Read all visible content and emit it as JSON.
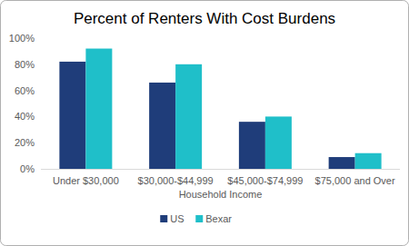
{
  "chart_data": {
    "type": "bar",
    "title": "Percent of Renters With Cost Burdens",
    "x_label": "Household Income",
    "categories": [
      "Under $30,000",
      "$30,000-$44,999",
      "$45,000-$74,999",
      "$75,000 and Over"
    ],
    "series": [
      {
        "name": "US",
        "color": "#1f3d7a",
        "values": [
          82,
          66,
          36,
          9
        ]
      },
      {
        "name": "Bexar",
        "color": "#1fbfc9",
        "values": [
          92,
          80,
          40,
          12
        ]
      }
    ],
    "ylim": [
      0,
      100
    ],
    "yticks": [
      {
        "value": 0,
        "label": "0%"
      },
      {
        "value": 20,
        "label": "20%"
      },
      {
        "value": 40,
        "label": "40%"
      },
      {
        "value": 60,
        "label": "60%"
      },
      {
        "value": 80,
        "label": "80%"
      },
      {
        "value": 100,
        "label": "100%"
      }
    ],
    "grid": false,
    "legend": "bottom"
  }
}
